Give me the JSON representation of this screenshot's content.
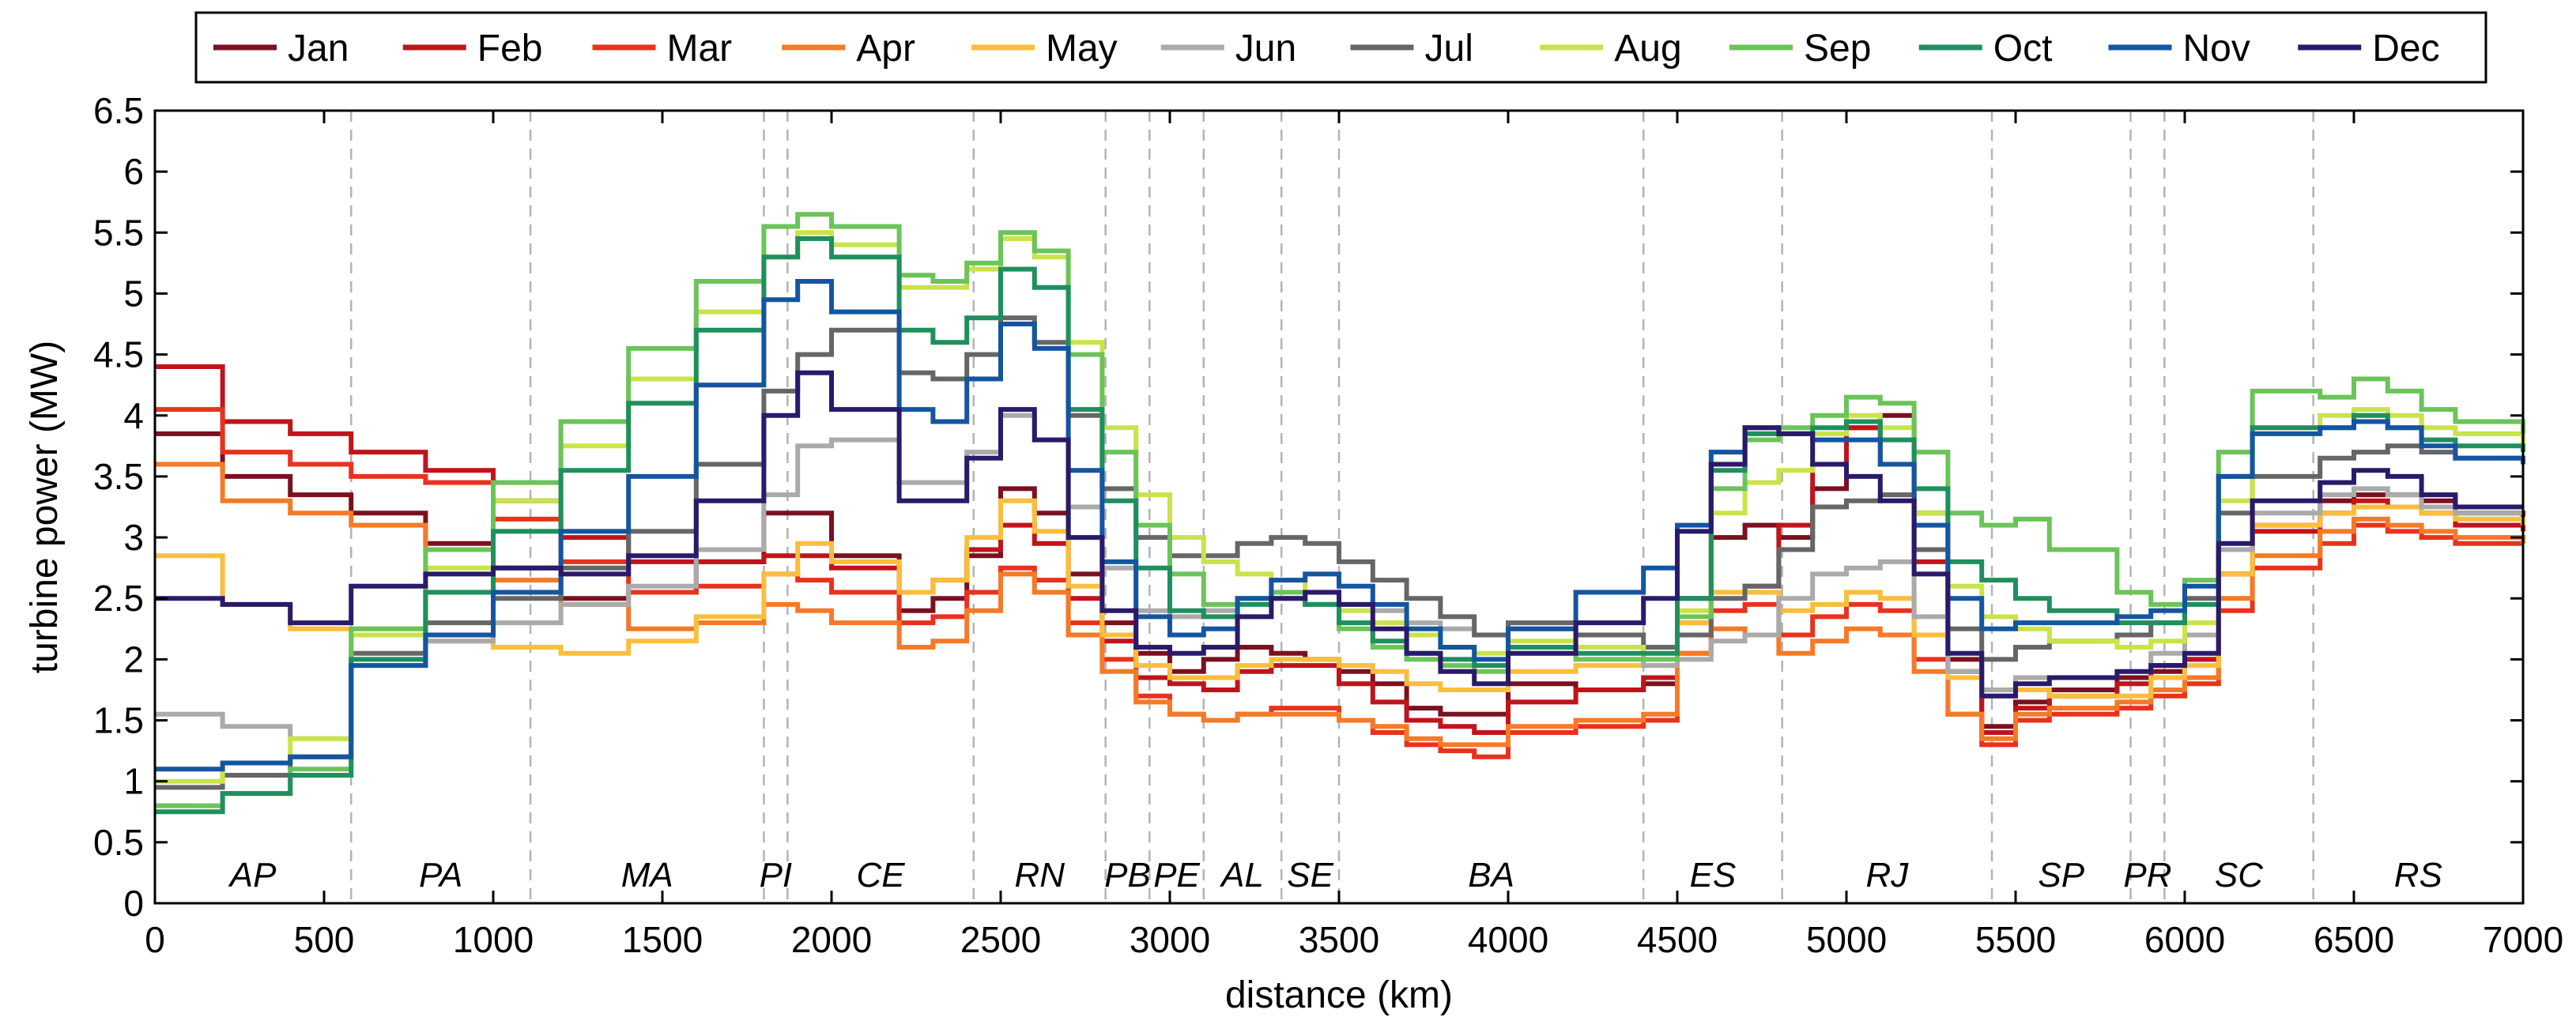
{
  "chart_data": {
    "type": "line",
    "xlabel": "distance (km)",
    "ylabel": "turbine power (MW)",
    "xlim": [
      0,
      7000
    ],
    "ylim": [
      0,
      6.5
    ],
    "xticks": [
      0,
      500,
      1000,
      1500,
      2000,
      2500,
      3000,
      3500,
      4000,
      4500,
      5000,
      5500,
      6000,
      6500,
      7000
    ],
    "xtick_labels": [
      "0",
      "500",
      "1000",
      "1500",
      "2000",
      "2500",
      "3000",
      "3500",
      "4000",
      "4500",
      "5000",
      "5500",
      "6000",
      "6500",
      "7000"
    ],
    "yticks": [
      0,
      0.5,
      1,
      1.5,
      2,
      2.5,
      3,
      3.5,
      4,
      4.5,
      5,
      5.5,
      6,
      6.5
    ],
    "ytick_labels": [
      "0",
      "0.5",
      "1",
      "1.5",
      "2",
      "2.5",
      "3",
      "3.5",
      "4",
      "4.5",
      "5",
      "5.5",
      "6",
      "6.5"
    ],
    "legend_position": "top",
    "region_boundaries": [
      580,
      1110,
      1800,
      1870,
      2420,
      2810,
      2940,
      3100,
      3330,
      3500,
      4400,
      4810,
      5430,
      5840,
      5940,
      6380
    ],
    "regions": [
      {
        "label": "AP",
        "x": 290
      },
      {
        "label": "PA",
        "x": 845
      },
      {
        "label": "MA",
        "x": 1455
      },
      {
        "label": "PI",
        "x": 1835
      },
      {
        "label": "CE",
        "x": 2145
      },
      {
        "label": "RN",
        "x": 2615
      },
      {
        "label": "PB",
        "x": 2875
      },
      {
        "label": "PE",
        "x": 3020
      },
      {
        "label": "AL",
        "x": 3215
      },
      {
        "label": "SE",
        "x": 3415
      },
      {
        "label": "BA",
        "x": 3950
      },
      {
        "label": "ES",
        "x": 4605
      },
      {
        "label": "RJ",
        "x": 5120
      },
      {
        "label": "SP",
        "x": 5635
      },
      {
        "label": "PR",
        "x": 5890
      },
      {
        "label": "SC",
        "x": 6160
      },
      {
        "label": "RS",
        "x": 6690
      }
    ],
    "x": [
      0,
      200,
      400,
      580,
      800,
      1000,
      1200,
      1400,
      1600,
      1800,
      1900,
      2000,
      2200,
      2300,
      2400,
      2500,
      2600,
      2700,
      2800,
      2900,
      3000,
      3100,
      3200,
      3300,
      3400,
      3500,
      3600,
      3700,
      3800,
      3900,
      4000,
      4200,
      4400,
      4500,
      4600,
      4700,
      4800,
      4900,
      5000,
      5100,
      5200,
      5300,
      5400,
      5500,
      5600,
      5800,
      5900,
      6000,
      6100,
      6200,
      6400,
      6500,
      6600,
      6700,
      6800,
      7000
    ],
    "series": [
      {
        "name": "Jan",
        "color": "#7b1020",
        "values": [
          3.85,
          3.5,
          3.35,
          3.2,
          2.95,
          2.75,
          2.5,
          2.55,
          2.8,
          3.2,
          3.2,
          2.85,
          2.4,
          2.5,
          2.85,
          3.4,
          3.2,
          2.7,
          2.3,
          2.05,
          1.9,
          2.0,
          2.1,
          2.05,
          2.0,
          1.9,
          1.8,
          1.6,
          1.55,
          1.55,
          1.8,
          1.75,
          1.8,
          2.5,
          3.0,
          3.1,
          3.0,
          3.4,
          3.9,
          4.0,
          3.2,
          2.0,
          1.45,
          1.65,
          1.75,
          1.85,
          1.9,
          2.0,
          2.7,
          3.1,
          3.3,
          3.35,
          3.35,
          3.3,
          3.2,
          3.15
        ]
      },
      {
        "name": "Feb",
        "color": "#c0141c",
        "values": [
          4.4,
          3.95,
          3.85,
          3.7,
          3.55,
          3.3,
          3.0,
          2.8,
          2.8,
          2.85,
          2.85,
          2.75,
          2.55,
          2.65,
          2.9,
          3.1,
          2.95,
          2.5,
          2.15,
          1.85,
          1.8,
          1.75,
          1.9,
          1.95,
          1.95,
          1.8,
          1.65,
          1.5,
          1.45,
          1.4,
          1.65,
          1.75,
          1.85,
          2.3,
          2.55,
          2.6,
          3.1,
          3.6,
          3.9,
          3.6,
          2.8,
          1.9,
          1.4,
          1.6,
          1.7,
          1.8,
          1.95,
          2.0,
          2.7,
          3.05,
          3.2,
          3.3,
          3.25,
          3.2,
          3.1,
          3.05
        ]
      },
      {
        "name": "Mar",
        "color": "#e8321e",
        "values": [
          4.05,
          3.7,
          3.6,
          3.5,
          3.45,
          3.15,
          2.8,
          2.55,
          2.6,
          2.7,
          2.65,
          2.55,
          2.3,
          2.35,
          2.55,
          2.75,
          2.65,
          2.3,
          2.0,
          1.7,
          1.55,
          1.5,
          1.55,
          1.6,
          1.6,
          1.5,
          1.4,
          1.3,
          1.25,
          1.2,
          1.4,
          1.45,
          1.5,
          2.05,
          2.4,
          2.45,
          2.2,
          2.35,
          2.45,
          2.4,
          2.0,
          1.55,
          1.3,
          1.5,
          1.55,
          1.6,
          1.7,
          1.8,
          2.4,
          2.75,
          2.95,
          3.1,
          3.05,
          3.0,
          2.95,
          2.95
        ]
      },
      {
        "name": "Apr",
        "color": "#f57a28",
        "values": [
          3.6,
          3.3,
          3.2,
          3.1,
          2.9,
          2.65,
          2.45,
          2.25,
          2.3,
          2.45,
          2.4,
          2.3,
          2.1,
          2.15,
          2.4,
          2.7,
          2.55,
          2.2,
          1.9,
          1.65,
          1.55,
          1.5,
          1.55,
          1.55,
          1.55,
          1.5,
          1.45,
          1.35,
          1.3,
          1.3,
          1.45,
          1.5,
          1.55,
          2.05,
          2.25,
          2.2,
          2.05,
          2.15,
          2.25,
          2.2,
          1.9,
          1.55,
          1.35,
          1.55,
          1.6,
          1.65,
          1.75,
          1.85,
          2.5,
          2.85,
          3.05,
          3.15,
          3.1,
          3.05,
          3.0,
          2.95
        ]
      },
      {
        "name": "May",
        "color": "#fbbe3c",
        "values": [
          2.85,
          2.45,
          2.25,
          2.25,
          2.15,
          2.1,
          2.05,
          2.15,
          2.35,
          2.7,
          2.95,
          2.8,
          2.55,
          2.65,
          3.0,
          3.3,
          3.05,
          2.6,
          2.2,
          1.95,
          1.85,
          1.85,
          1.95,
          2.0,
          2.0,
          1.95,
          1.9,
          1.8,
          1.75,
          1.75,
          1.9,
          1.95,
          1.95,
          2.3,
          2.55,
          2.55,
          2.4,
          2.45,
          2.55,
          2.5,
          2.2,
          1.85,
          1.7,
          1.75,
          1.7,
          1.7,
          1.85,
          1.95,
          2.7,
          3.1,
          3.2,
          3.25,
          3.25,
          3.2,
          3.15,
          3.1
        ]
      },
      {
        "name": "Jun",
        "color": "#aaaaaa",
        "values": [
          1.55,
          1.45,
          1.35,
          1.95,
          2.15,
          2.3,
          2.45,
          2.6,
          2.9,
          3.35,
          3.75,
          3.8,
          3.45,
          3.45,
          3.7,
          4.0,
          3.8,
          3.25,
          2.75,
          2.4,
          2.35,
          2.4,
          2.5,
          2.55,
          2.55,
          2.45,
          2.4,
          2.3,
          2.25,
          2.2,
          2.25,
          2.1,
          1.95,
          2.0,
          2.15,
          2.2,
          2.5,
          2.7,
          2.75,
          2.8,
          2.35,
          1.9,
          1.75,
          1.85,
          1.85,
          1.9,
          2.05,
          2.2,
          2.9,
          3.2,
          3.35,
          3.4,
          3.35,
          3.25,
          3.2,
          3.2
        ]
      },
      {
        "name": "Jul",
        "color": "#666666",
        "values": [
          0.95,
          1.05,
          1.2,
          2.05,
          2.3,
          2.5,
          2.75,
          3.05,
          3.6,
          4.2,
          4.5,
          4.7,
          4.35,
          4.3,
          4.5,
          4.8,
          4.6,
          4.0,
          3.4,
          3.0,
          2.85,
          2.85,
          2.95,
          3.0,
          2.95,
          2.8,
          2.65,
          2.5,
          2.35,
          2.2,
          2.3,
          2.2,
          2.1,
          2.2,
          2.5,
          2.6,
          2.9,
          3.25,
          3.3,
          3.35,
          2.9,
          2.25,
          2.0,
          2.1,
          2.15,
          2.2,
          2.3,
          2.5,
          3.2,
          3.5,
          3.65,
          3.7,
          3.75,
          3.7,
          3.65,
          3.65
        ]
      },
      {
        "name": "Aug",
        "color": "#c9e34a",
        "values": [
          1.0,
          1.15,
          1.35,
          2.2,
          2.75,
          3.3,
          3.75,
          4.3,
          4.85,
          5.3,
          5.5,
          5.4,
          5.05,
          5.05,
          5.2,
          5.45,
          5.3,
          4.6,
          3.9,
          3.35,
          3.0,
          2.8,
          2.7,
          2.65,
          2.55,
          2.4,
          2.3,
          2.2,
          2.1,
          2.05,
          2.15,
          2.1,
          2.05,
          2.4,
          3.2,
          3.45,
          3.55,
          3.85,
          4.0,
          3.9,
          3.2,
          2.6,
          2.35,
          2.25,
          2.15,
          2.1,
          2.15,
          2.3,
          3.3,
          3.9,
          4.0,
          4.05,
          4.0,
          3.9,
          3.85,
          3.75
        ]
      },
      {
        "name": "Sep",
        "color": "#6cc35a",
        "values": [
          0.8,
          0.9,
          1.1,
          2.25,
          2.9,
          3.45,
          3.95,
          4.55,
          5.1,
          5.55,
          5.65,
          5.55,
          5.15,
          5.1,
          5.25,
          5.5,
          5.35,
          4.5,
          3.7,
          3.1,
          2.7,
          2.45,
          2.5,
          2.55,
          2.45,
          2.25,
          2.1,
          2.0,
          1.95,
          1.9,
          2.05,
          2.0,
          2.0,
          2.35,
          3.4,
          3.8,
          3.9,
          4.0,
          4.15,
          4.1,
          3.7,
          3.2,
          3.1,
          3.15,
          2.9,
          2.55,
          2.45,
          2.65,
          3.7,
          4.2,
          4.15,
          4.3,
          4.2,
          4.05,
          3.95,
          3.85
        ]
      },
      {
        "name": "Oct",
        "color": "#1f8f5e",
        "values": [
          0.75,
          0.9,
          1.05,
          2.0,
          2.55,
          3.05,
          3.55,
          4.1,
          4.7,
          5.3,
          5.45,
          5.3,
          4.7,
          4.6,
          4.8,
          5.2,
          5.05,
          4.05,
          3.3,
          2.75,
          2.4,
          2.35,
          2.45,
          2.5,
          2.45,
          2.3,
          2.15,
          2.05,
          2.0,
          1.95,
          2.1,
          2.05,
          2.05,
          2.5,
          3.55,
          3.85,
          3.85,
          3.9,
          3.95,
          3.8,
          3.4,
          2.8,
          2.65,
          2.5,
          2.4,
          2.3,
          2.3,
          2.45,
          3.5,
          3.9,
          3.9,
          4.0,
          3.9,
          3.8,
          3.75,
          3.7
        ]
      },
      {
        "name": "Nov",
        "color": "#1555a0",
        "values": [
          1.1,
          1.15,
          1.2,
          1.95,
          2.2,
          2.55,
          3.05,
          3.5,
          4.25,
          4.95,
          5.1,
          4.85,
          4.05,
          3.95,
          4.3,
          4.75,
          4.55,
          3.55,
          2.8,
          2.35,
          2.2,
          2.25,
          2.5,
          2.65,
          2.7,
          2.6,
          2.45,
          2.25,
          2.1,
          2.0,
          2.25,
          2.55,
          2.75,
          3.1,
          3.7,
          3.9,
          3.85,
          3.8,
          3.8,
          3.6,
          3.1,
          2.5,
          2.25,
          2.3,
          2.3,
          2.35,
          2.4,
          2.6,
          3.5,
          3.85,
          3.9,
          3.95,
          3.9,
          3.75,
          3.65,
          3.6
        ]
      },
      {
        "name": "Dec",
        "color": "#2a1a6a",
        "values": [
          2.5,
          2.45,
          2.3,
          2.6,
          2.7,
          2.75,
          2.7,
          2.85,
          3.3,
          4.0,
          4.35,
          4.05,
          3.3,
          3.3,
          3.65,
          4.05,
          3.8,
          3.0,
          2.4,
          2.1,
          2.05,
          2.1,
          2.35,
          2.5,
          2.55,
          2.45,
          2.25,
          2.05,
          1.9,
          1.8,
          2.05,
          2.3,
          2.5,
          3.05,
          3.6,
          3.9,
          3.85,
          3.6,
          3.5,
          3.3,
          2.7,
          2.05,
          1.7,
          1.8,
          1.85,
          1.9,
          1.95,
          2.05,
          2.95,
          3.3,
          3.45,
          3.55,
          3.5,
          3.35,
          3.25,
          3.25
        ]
      }
    ]
  }
}
